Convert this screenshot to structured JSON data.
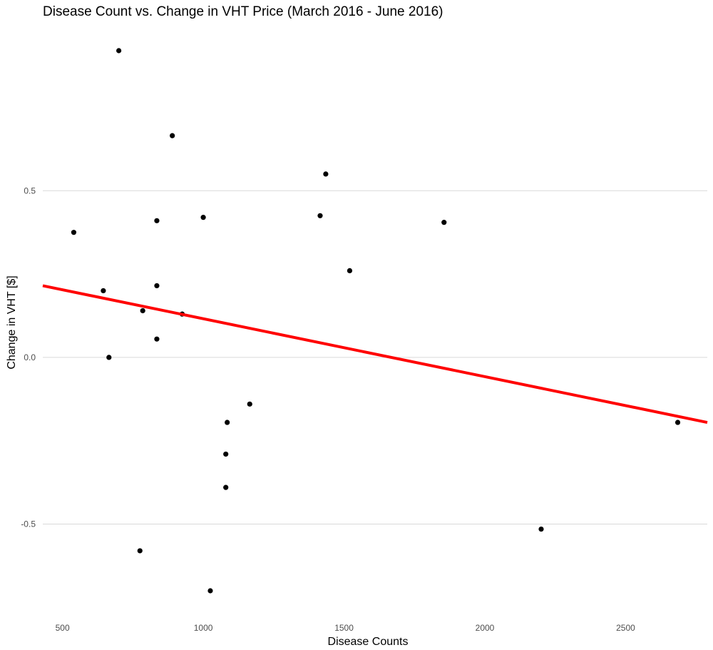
{
  "chart_data": {
    "type": "scatter",
    "title": "Disease Count vs. Change in VHT Price (March 2016 - June 2016)",
    "xlabel": "Disease Counts",
    "ylabel": "Change in VHT [$]",
    "xlim": [
      430,
      2790
    ],
    "ylim": [
      -0.75,
      0.92
    ],
    "x_ticks": [
      500,
      1000,
      1500,
      2000,
      2500
    ],
    "y_ticks": [
      -0.5,
      0.0,
      0.5
    ],
    "x_tick_labels": [
      "500",
      "1000",
      "1500",
      "2000",
      "2500"
    ],
    "y_tick_labels": [
      "-0.5",
      "0.0",
      "0.5"
    ],
    "grid": "horizontal major lines only",
    "points": [
      {
        "x": 540,
        "y": 0.375
      },
      {
        "x": 645,
        "y": 0.2
      },
      {
        "x": 665,
        "y": 0.0
      },
      {
        "x": 700,
        "y": 0.92
      },
      {
        "x": 775,
        "y": -0.58
      },
      {
        "x": 785,
        "y": 0.14
      },
      {
        "x": 835,
        "y": 0.41
      },
      {
        "x": 835,
        "y": 0.215
      },
      {
        "x": 835,
        "y": 0.055
      },
      {
        "x": 890,
        "y": 0.665
      },
      {
        "x": 925,
        "y": 0.13
      },
      {
        "x": 1000,
        "y": 0.42
      },
      {
        "x": 1025,
        "y": -0.7
      },
      {
        "x": 1080,
        "y": -0.29
      },
      {
        "x": 1080,
        "y": -0.39
      },
      {
        "x": 1085,
        "y": -0.195
      },
      {
        "x": 1165,
        "y": -0.14
      },
      {
        "x": 1415,
        "y": 0.425
      },
      {
        "x": 1435,
        "y": 0.55
      },
      {
        "x": 1520,
        "y": 0.26
      },
      {
        "x": 1855,
        "y": 0.405
      },
      {
        "x": 2200,
        "y": -0.515
      },
      {
        "x": 2685,
        "y": -0.195
      }
    ],
    "regression_line": {
      "x": [
        430,
        2790
      ],
      "y": [
        0.215,
        -0.195
      ],
      "color": "#ff0000"
    },
    "point_color": "#000000",
    "grid_color": "#d9d9d9"
  }
}
